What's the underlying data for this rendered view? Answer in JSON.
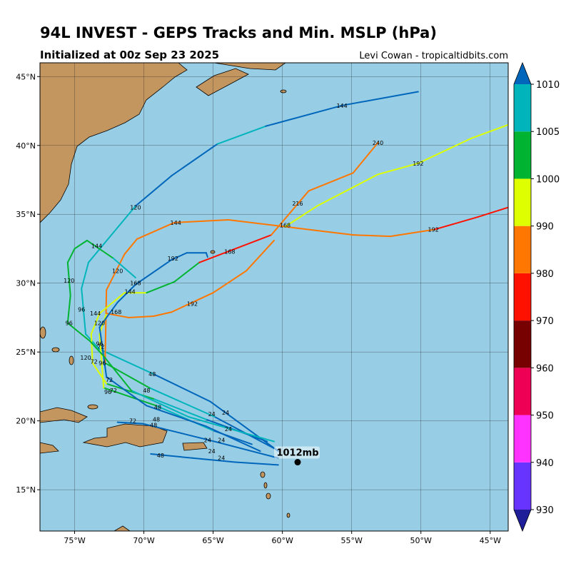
{
  "chart_data": {
    "type": "track-map",
    "title": "94L INVEST - GEPS Tracks and Min. MSLP (hPa)",
    "subtitle": "Initialized at 00z Sep 23 2025",
    "credit": "Levi Cowan - tropicaltidbits.com",
    "xlim": [
      -77.5,
      -43.7
    ],
    "ylim": [
      12,
      46
    ],
    "xticks": [
      {
        "value": -75,
        "label": "75°W"
      },
      {
        "value": -70,
        "label": "70°W"
      },
      {
        "value": -65,
        "label": "65°W"
      },
      {
        "value": -60,
        "label": "60°W"
      },
      {
        "value": -55,
        "label": "55°W"
      },
      {
        "value": -50,
        "label": "50°W"
      },
      {
        "value": -45,
        "label": "45°W"
      }
    ],
    "yticks": [
      {
        "value": 15,
        "label": "15°N"
      },
      {
        "value": 20,
        "label": "20°N"
      },
      {
        "value": 25,
        "label": "25°N"
      },
      {
        "value": 30,
        "label": "30°N"
      },
      {
        "value": 35,
        "label": "35°N"
      },
      {
        "value": 40,
        "label": "40°N"
      },
      {
        "value": 45,
        "label": "45°N"
      }
    ],
    "grid": true,
    "ocean_color": "#97cee5",
    "colorbar": {
      "ticks": [
        930,
        940,
        950,
        960,
        970,
        980,
        990,
        1000,
        1005,
        1010
      ],
      "colors": [
        "#6633ff",
        "#ff33ff",
        "#ee0055",
        "#770000",
        "#ff1100",
        "#ff7700",
        "#ddff00",
        "#00b432",
        "#00b4bc"
      ],
      "under": "#1f1f99",
      "over": "#0066bb"
    },
    "storm": {
      "lon": -58.9,
      "lat": 17.0,
      "mslp": 1012,
      "mslp_label": "1012mb"
    },
    "tracks": [
      {
        "lon": [
          -60.3,
          -65.2,
          -69.3,
          -73.2,
          -74.2,
          -74.5,
          -74.0,
          -70.6,
          -68.0,
          -64.7,
          -61.2,
          -55.7,
          -50.2
        ],
        "lat": [
          17.8,
          21.4,
          23.4,
          25.2,
          26.3,
          29.6,
          31.5,
          35.6,
          37.8,
          40.1,
          41.4,
          42.9,
          43.9
        ],
        "mslp": [
          1011,
          1011,
          1011,
          1009,
          1008,
          1008,
          1008,
          1007,
          1011,
          1011,
          1009,
          1011,
          1011
        ]
      },
      {
        "lon": [
          -60.6,
          -64.9,
          -69.6,
          -72.8,
          -72.7,
          -71.4,
          -70.5,
          -67.8,
          -63.9,
          -59.8,
          -54.9,
          -52.2,
          -49.0,
          -45.9,
          -43.7
        ],
        "lat": [
          18.0,
          20.3,
          22.4,
          24.2,
          29.5,
          32.1,
          33.2,
          34.4,
          34.6,
          34.1,
          33.5,
          33.4,
          33.9,
          34.8,
          35.5
        ],
        "mslp": [
          1011,
          1010,
          1008,
          1004,
          985,
          988,
          986,
          985,
          985,
          985,
          985,
          985,
          985,
          975,
          978
        ]
      },
      {
        "lon": [
          -61.1,
          -65.5,
          -69.3,
          -72.7,
          -73.7,
          -73.8,
          -73.2,
          -71.4,
          -69.8,
          -67.8,
          -66.0,
          -60.8,
          -58.1,
          -54.9,
          -53.1
        ],
        "lat": [
          18.5,
          20.1,
          21.6,
          22.7,
          24.2,
          26.3,
          27.8,
          29.3,
          29.3,
          30.1,
          31.5,
          33.5,
          36.7,
          38.0,
          40.2
        ],
        "mslp": [
          1011,
          1010,
          1006,
          1002,
          998,
          996,
          994,
          994,
          994,
          1002,
          1002,
          975,
          985,
          985,
          985
        ]
      },
      {
        "lon": [
          -59.8,
          -57.5,
          -53.1,
          -50.2,
          -46.4,
          -43.7
        ],
        "lat": [
          34.1,
          35.6,
          37.9,
          38.7,
          40.5,
          41.5
        ],
        "mslp": [
          994,
          993,
          992,
          993,
          994,
          996
        ]
      },
      {
        "lon": [
          -62.2,
          -65.0,
          -69.1,
          -72.9,
          -73.2,
          -72.7,
          -71.1,
          -69.3,
          -68.0,
          -65.0,
          -62.6,
          -60.6
        ],
        "lat": [
          18.3,
          19.3,
          21.1,
          22.4,
          26.3,
          27.8,
          27.5,
          27.6,
          27.9,
          29.3,
          30.9,
          33.1
        ],
        "mslp": [
          1011,
          1010,
          1007,
          1003,
          998,
          995,
          985,
          985,
          985,
          985,
          985,
          985
        ]
      },
      {
        "lon": [
          -61.6,
          -65.5,
          -69.8,
          -72.7,
          -73.2,
          -71.9,
          -70.6,
          -68.0,
          -66.9,
          -65.5,
          -65.4
        ],
        "lat": [
          17.8,
          19.6,
          21.1,
          23.2,
          26.8,
          28.6,
          29.9,
          31.7,
          32.2,
          32.2,
          31.9
        ],
        "mslp": [
          1011,
          1011,
          1011,
          1011,
          1011,
          1011,
          1011,
          1011,
          1011,
          1011,
          1011
        ]
      },
      {
        "lon": [
          -60.6,
          -66.8,
          -70.9,
          -72.9,
          -73.9,
          -75.5,
          -75.3,
          -75.5,
          -75.0,
          -74.1,
          -72.2,
          -70.6
        ],
        "lat": [
          18.5,
          20.3,
          22.2,
          24.7,
          25.8,
          27.1,
          29.1,
          31.5,
          32.5,
          33.1,
          31.8,
          30.4
        ],
        "mslp": [
          1011,
          1009,
          1007,
          1003,
          1002,
          1002,
          1003,
          1003,
          1004,
          1004,
          1004,
          1008
        ]
      },
      {
        "lon": [
          -60.3,
          -63.4,
          -66.5,
          -69.5
        ],
        "lat": [
          16.8,
          17.0,
          17.3,
          17.6
        ],
        "mslp": [
          1011,
          1011,
          1011,
          1011
        ]
      },
      {
        "lon": [
          -60.3,
          -64.9,
          -70.1,
          -71.9
        ],
        "lat": [
          17.3,
          18.5,
          19.8,
          19.9
        ],
        "mslp": [
          1011,
          1011,
          1011,
          1011
        ]
      }
    ],
    "hour_labels": [
      {
        "hour": 144,
        "lon": -55.7,
        "lat": 42.9
      },
      {
        "hour": 240,
        "lon": -53.1,
        "lat": 40.2
      },
      {
        "hour": 192,
        "lon": -50.2,
        "lat": 38.7
      },
      {
        "hour": 216,
        "lon": -58.9,
        "lat": 35.8
      },
      {
        "hour": 120,
        "lon": -70.6,
        "lat": 35.5
      },
      {
        "hour": 144,
        "lon": -67.7,
        "lat": 34.4
      },
      {
        "hour": 192,
        "lon": -49.1,
        "lat": 33.9
      },
      {
        "hour": 168,
        "lon": -59.8,
        "lat": 34.2
      },
      {
        "hour": 168,
        "lon": -63.8,
        "lat": 32.3
      },
      {
        "hour": 144,
        "lon": -73.4,
        "lat": 32.7
      },
      {
        "hour": 192,
        "lon": -67.9,
        "lat": 31.8
      },
      {
        "hour": 120,
        "lon": -71.9,
        "lat": 30.9
      },
      {
        "hour": 120,
        "lon": -75.4,
        "lat": 30.2
      },
      {
        "hour": 168,
        "lon": -70.6,
        "lat": 30.0
      },
      {
        "hour": 144,
        "lon": -71.0,
        "lat": 29.4
      },
      {
        "hour": 96,
        "lon": -74.5,
        "lat": 28.1
      },
      {
        "hour": 144,
        "lon": -73.5,
        "lat": 27.8
      },
      {
        "hour": 168,
        "lon": -72.0,
        "lat": 27.9
      },
      {
        "hour": 192,
        "lon": -66.5,
        "lat": 28.5
      },
      {
        "hour": 120,
        "lon": -73.2,
        "lat": 27.1
      },
      {
        "hour": 96,
        "lon": -75.4,
        "lat": 27.1
      },
      {
        "hour": 96,
        "lon": -73.2,
        "lat": 25.6
      },
      {
        "hour": 72,
        "lon": -73.1,
        "lat": 25.4
      },
      {
        "hour": 120,
        "lon": -74.2,
        "lat": 24.6
      },
      {
        "hour": 72,
        "lon": -73.6,
        "lat": 24.3
      },
      {
        "hour": 96,
        "lon": -73.0,
        "lat": 24.2
      },
      {
        "hour": 48,
        "lon": -69.4,
        "lat": 23.4
      },
      {
        "hour": 72,
        "lon": -72.5,
        "lat": 23.0
      },
      {
        "hour": 48,
        "lon": -69.8,
        "lat": 22.2
      },
      {
        "hour": 72,
        "lon": -72.2,
        "lat": 22.2
      },
      {
        "hour": 96,
        "lon": -72.6,
        "lat": 22.1
      },
      {
        "hour": 48,
        "lon": -69.0,
        "lat": 21.0
      },
      {
        "hour": 24,
        "lon": -64.1,
        "lat": 20.6
      },
      {
        "hour": 24,
        "lon": -65.1,
        "lat": 20.5
      },
      {
        "hour": 72,
        "lon": -70.8,
        "lat": 20.0
      },
      {
        "hour": 48,
        "lon": -69.1,
        "lat": 20.1
      },
      {
        "hour": 48,
        "lon": -69.3,
        "lat": 19.7
      },
      {
        "hour": 24,
        "lon": -63.9,
        "lat": 19.4
      },
      {
        "hour": 24,
        "lon": -65.4,
        "lat": 18.6
      },
      {
        "hour": 24,
        "lon": -64.4,
        "lat": 18.6
      },
      {
        "hour": 24,
        "lon": -65.1,
        "lat": 17.8
      },
      {
        "hour": 24,
        "lon": -64.4,
        "lat": 17.3
      },
      {
        "hour": 48,
        "lon": -68.8,
        "lat": 17.5
      }
    ]
  }
}
